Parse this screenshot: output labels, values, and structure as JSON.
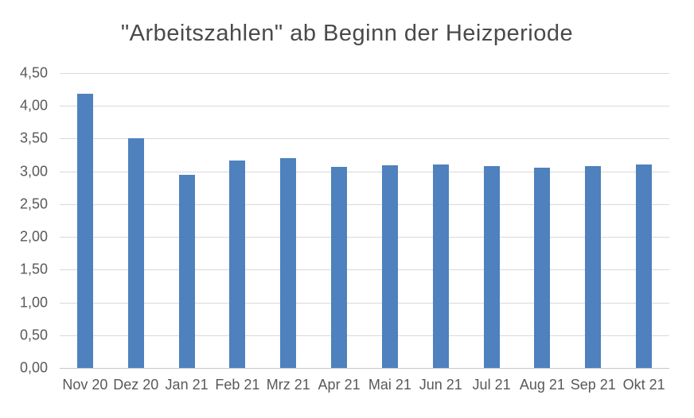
{
  "chart_data": {
    "type": "bar",
    "title": "\"Arbeitszahlen\" ab Beginn der Heizperiode",
    "categories": [
      "Nov 20",
      "Dez 20",
      "Jan 21",
      "Feb 21",
      "Mrz 21",
      "Apr 21",
      "Mai 21",
      "Jun 21",
      "Jul 21",
      "Aug 21",
      "Sep 21",
      "Okt 21"
    ],
    "values": [
      4.18,
      3.5,
      2.95,
      3.16,
      3.2,
      3.07,
      3.09,
      3.1,
      3.08,
      3.06,
      3.08,
      3.11
    ],
    "xlabel": "",
    "ylabel": "",
    "ylim": [
      0,
      4.5
    ],
    "yticks": [
      {
        "value": 0.0,
        "label": "0,00"
      },
      {
        "value": 0.5,
        "label": "0,50"
      },
      {
        "value": 1.0,
        "label": "1,00"
      },
      {
        "value": 1.5,
        "label": "1,50"
      },
      {
        "value": 2.0,
        "label": "2,00"
      },
      {
        "value": 2.5,
        "label": "2,50"
      },
      {
        "value": 3.0,
        "label": "3,00"
      },
      {
        "value": 3.5,
        "label": "3,50"
      },
      {
        "value": 4.0,
        "label": "4,00"
      },
      {
        "value": 4.5,
        "label": "4,50"
      }
    ],
    "grid": true,
    "legend": false,
    "colors": {
      "bar": "#4E81BD",
      "gridline": "#D9D9D9",
      "axis_line": "#C6C6C6",
      "tick_text": "#595959",
      "title_text": "#4A4A4A",
      "background": "#FFFFFF"
    }
  }
}
